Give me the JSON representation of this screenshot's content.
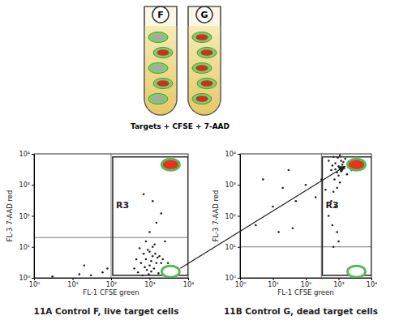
{
  "diagram": {
    "caption": "Targets + CFSE + 7-AAD",
    "tubes": [
      {
        "label": "F",
        "colors": [
          "#a8a8a8",
          "#c8321e",
          "#a8a8a8",
          "#c8321e",
          "#a8a8a8"
        ]
      },
      {
        "label": "G",
        "colors": [
          "#c8321e",
          "#c8321e",
          "#c8321e",
          "#c8321e",
          "#c8321e"
        ]
      }
    ]
  },
  "chart_data": [
    {
      "type": "scatter",
      "title": "11A Control F, live target cells",
      "x_label": "FL-1 CFSE green",
      "y_label": "FL-3 7-AAD red",
      "log": true,
      "xlim": [
        1,
        10000
      ],
      "ylim": [
        1,
        10000
      ],
      "xticks": [
        {
          "value": 1,
          "label": "10⁰"
        },
        {
          "value": 10,
          "label": "10¹"
        },
        {
          "value": 100,
          "label": "10²"
        },
        {
          "value": 1000,
          "label": "10³"
        },
        {
          "value": 10000,
          "label": "10⁴"
        }
      ],
      "yticks": [
        {
          "value": 1,
          "label": "10⁰"
        },
        {
          "value": 10,
          "label": "10¹"
        },
        {
          "value": 100,
          "label": "10²"
        },
        {
          "value": 1000,
          "label": "10³"
        },
        {
          "value": 10000,
          "label": "10⁴"
        }
      ],
      "series": [
        {
          "color": "#222222",
          "x": [
            400,
            600,
            800,
            1000,
            1200,
            1500,
            700,
            900,
            1100,
            1300,
            1600,
            2000,
            2500,
            500,
            650,
            850,
            1000,
            1200,
            1400,
            1800,
            2200,
            3000,
            450,
            550,
            750,
            950,
            1100,
            1700,
            1350,
            800,
            1000,
            1500,
            2000,
            1200,
            700,
            30,
            60,
            15,
            80,
            3,
            20,
            2500
          ],
          "y": [
            2,
            3,
            4,
            2.5,
            5,
            3,
            6,
            8,
            3.5,
            2,
            4.5,
            3,
            2,
            1.5,
            1.2,
            1.8,
            7,
            10,
            6,
            5,
            4,
            3,
            4,
            9,
            2.2,
            1.3,
            1.6,
            1.4,
            12,
            15,
            30,
            60,
            120,
            300,
            500,
            1.2,
            1.5,
            1.3,
            2,
            1.1,
            2.5,
            15
          ]
        }
      ],
      "gate": {
        "label": "R3",
        "x": [
          110,
          10000
        ],
        "y": [
          1.2,
          8000
        ]
      },
      "quadrant": {
        "x": 100,
        "y": 20
      },
      "cells": [
        {
          "x": 3500,
          "y": 4500,
          "color": "#e8321e"
        },
        {
          "x": 3500,
          "y": 1.6,
          "color": "#ffffff"
        }
      ]
    },
    {
      "type": "scatter",
      "title": "11B Control G, dead target cells",
      "x_label": "FL-1 CFSE green",
      "y_label": "FL-3 7-AAD red",
      "log": true,
      "xlim": [
        1,
        10000
      ],
      "ylim": [
        1,
        10000
      ],
      "xticks": [
        {
          "value": 1,
          "label": "10⁰"
        },
        {
          "value": 10,
          "label": "10¹"
        },
        {
          "value": 100,
          "label": "10²"
        },
        {
          "value": 1000,
          "label": "10³"
        },
        {
          "value": 10000,
          "label": "10⁴"
        }
      ],
      "yticks": [
        {
          "value": 1,
          "label": "10⁰"
        },
        {
          "value": 10,
          "label": "10¹"
        },
        {
          "value": 100,
          "label": "10²"
        },
        {
          "value": 1000,
          "label": "10³"
        },
        {
          "value": 10000,
          "label": "10⁴"
        }
      ],
      "series": [
        {
          "color": "#222222",
          "x": [
            600,
            800,
            1000,
            1200,
            1500,
            2000,
            700,
            900,
            1100,
            1300,
            1600,
            2500,
            500,
            1800,
            1000,
            800,
            1200,
            1400,
            950,
            650,
            3000,
            750,
            1100,
            900,
            700,
            600,
            800,
            500,
            650,
            900,
            400,
            300,
            200,
            100,
            50,
            20,
            10,
            5,
            3,
            40,
            15,
            30,
            1000,
            700
          ],
          "y": [
            3000,
            5000,
            4000,
            6000,
            3500,
            5000,
            8000,
            2500,
            9000,
            4500,
            7000,
            3000,
            6000,
            2200,
            2000,
            3200,
            2800,
            5500,
            7500,
            4200,
            4000,
            1500,
            1200,
            800,
            600,
            300,
            200,
            100,
            50,
            30,
            700,
            1500,
            400,
            1000,
            300,
            800,
            200,
            1500,
            50,
            40,
            30,
            3000,
            15,
            10
          ]
        }
      ],
      "gate": {
        "label": "R3",
        "x": [
          320,
          10000
        ],
        "y": [
          1.2,
          8000
        ]
      },
      "quadrant": {
        "x": 300,
        "y": 10
      },
      "cells": [
        {
          "x": 3500,
          "y": 4500,
          "color": "#e8321e"
        },
        {
          "x": 3500,
          "y": 1.6,
          "color": "#ffffff"
        }
      ]
    }
  ]
}
